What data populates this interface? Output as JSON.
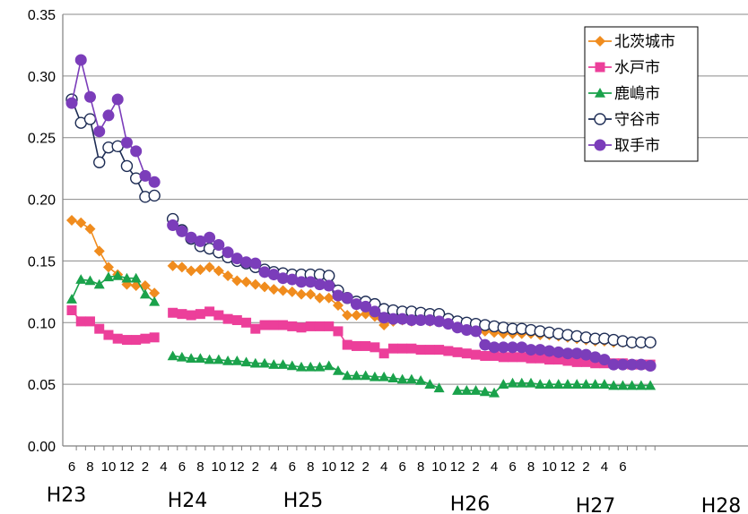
{
  "chart_data": {
    "type": "line",
    "title": "",
    "xlabel": "",
    "ylabel": "",
    "ylim": [
      0,
      0.35
    ],
    "y_ticks": [
      "0.00",
      "0.05",
      "0.10",
      "0.15",
      "0.20",
      "0.25",
      "0.30",
      "0.35"
    ],
    "grid": "horizontal",
    "legend_position": "top-right",
    "x_tick_labels": [
      "6",
      "8",
      "10",
      "12",
      "2",
      "4",
      "6",
      "8",
      "10",
      "12",
      "2",
      "4",
      "6",
      "8",
      "10",
      "12",
      "2",
      "4",
      "6",
      "8",
      "10",
      "12",
      "2",
      "4",
      "6",
      "8",
      "10",
      "12",
      "2",
      "4",
      "6"
    ],
    "era_labels": [
      "H23",
      "H24",
      "H25",
      "H26",
      "H27",
      "H28"
    ],
    "series": [
      {
        "name": "北茨城市",
        "color": "#f08c1e",
        "marker": "diamond",
        "values": [
          0.183,
          0.181,
          0.176,
          0.158,
          0.145,
          0.139,
          0.131,
          0.13,
          0.13,
          0.124,
          null,
          0.146,
          0.145,
          0.142,
          0.143,
          0.145,
          0.142,
          0.138,
          0.134,
          0.133,
          0.131,
          0.129,
          0.127,
          0.126,
          0.125,
          0.123,
          0.123,
          0.12,
          0.12,
          0.114,
          0.106,
          0.106,
          0.107,
          0.105,
          0.098,
          0.101,
          0.102,
          0.101,
          0.102,
          0.101,
          0.101,
          0.1,
          0.1,
          0.097,
          0.096,
          0.093,
          0.092,
          0.091,
          0.091,
          0.091,
          0.091,
          0.09,
          0.09,
          0.089,
          0.088,
          0.087,
          0.086,
          0.085,
          0.085,
          0.084,
          0.084,
          0.083,
          0.083,
          0.083
        ]
      },
      {
        "name": "水戸市",
        "color": "#ec3f9a",
        "marker": "square",
        "values": [
          0.11,
          0.101,
          0.101,
          0.095,
          0.09,
          0.087,
          0.086,
          0.086,
          0.087,
          0.088,
          null,
          0.108,
          0.107,
          0.106,
          0.107,
          0.109,
          0.106,
          0.103,
          0.102,
          0.1,
          0.095,
          0.098,
          0.098,
          0.098,
          0.097,
          0.096,
          0.097,
          0.097,
          0.097,
          0.093,
          0.082,
          0.081,
          0.081,
          0.08,
          0.075,
          0.079,
          0.079,
          0.079,
          0.078,
          0.078,
          0.078,
          0.077,
          0.076,
          0.075,
          0.074,
          0.073,
          0.073,
          0.072,
          0.072,
          0.072,
          0.071,
          0.071,
          0.07,
          0.07,
          0.069,
          0.068,
          0.068,
          0.067,
          0.067,
          0.067,
          0.067,
          0.066,
          0.066,
          0.066
        ]
      },
      {
        "name": "鹿嶋市",
        "color": "#1aa24b",
        "marker": "triangle",
        "values": [
          0.119,
          0.135,
          0.134,
          0.131,
          0.137,
          0.138,
          0.136,
          0.136,
          0.123,
          0.117,
          null,
          0.073,
          0.072,
          0.071,
          0.071,
          0.07,
          0.07,
          0.069,
          0.069,
          0.068,
          0.067,
          0.067,
          0.066,
          0.066,
          0.065,
          0.064,
          0.064,
          0.064,
          0.065,
          0.061,
          0.057,
          0.057,
          0.057,
          0.056,
          0.056,
          0.055,
          0.054,
          0.054,
          0.053,
          0.05,
          0.047,
          null,
          0.045,
          0.045,
          0.045,
          0.044,
          0.043,
          0.05,
          0.051,
          0.051,
          0.051,
          0.05,
          0.05,
          0.05,
          0.05,
          0.05,
          0.05,
          0.05,
          0.05,
          0.049,
          0.049,
          0.049,
          0.049,
          0.049
        ]
      },
      {
        "name": "守谷市",
        "color": "#1e2d55",
        "marker": "circle-open",
        "values": [
          0.281,
          0.262,
          0.265,
          0.23,
          0.242,
          0.243,
          0.227,
          0.217,
          0.202,
          0.203,
          null,
          0.184,
          0.175,
          0.168,
          0.162,
          0.16,
          0.157,
          0.153,
          0.15,
          0.148,
          0.145,
          0.143,
          0.141,
          0.14,
          0.139,
          0.139,
          0.139,
          0.139,
          0.138,
          0.126,
          0.12,
          0.117,
          0.117,
          0.115,
          0.111,
          0.11,
          0.109,
          0.109,
          0.108,
          0.107,
          0.107,
          0.103,
          0.101,
          0.1,
          0.099,
          0.098,
          0.097,
          0.096,
          0.095,
          0.095,
          0.094,
          0.093,
          0.092,
          0.091,
          0.09,
          0.089,
          0.088,
          0.087,
          0.087,
          0.086,
          0.085,
          0.084,
          0.084,
          0.084
        ]
      },
      {
        "name": "取手市",
        "color": "#7b3dba",
        "marker": "circle",
        "values": [
          0.278,
          0.313,
          0.283,
          0.255,
          0.268,
          0.281,
          0.246,
          0.239,
          0.219,
          0.214,
          null,
          0.179,
          0.174,
          0.169,
          0.166,
          0.169,
          0.163,
          0.157,
          0.152,
          0.149,
          0.148,
          0.141,
          0.139,
          0.136,
          0.135,
          0.133,
          0.133,
          0.131,
          0.13,
          0.122,
          0.12,
          0.115,
          0.113,
          0.109,
          0.104,
          0.103,
          0.103,
          0.102,
          0.102,
          0.102,
          0.101,
          0.099,
          0.096,
          0.094,
          0.093,
          0.082,
          0.08,
          0.08,
          0.08,
          0.08,
          0.078,
          0.078,
          0.077,
          0.076,
          0.075,
          0.075,
          0.074,
          0.072,
          0.07,
          0.066,
          0.066,
          0.066,
          0.066,
          0.065
        ]
      }
    ]
  }
}
